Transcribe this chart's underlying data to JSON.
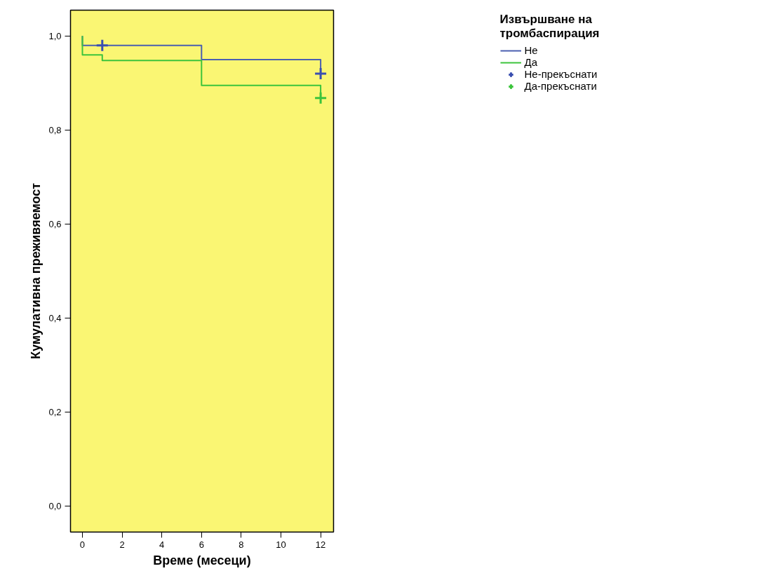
{
  "chart_data": {
    "type": "step",
    "xlabel": "Време (месеци)",
    "ylabel": "Кумулативна преживяемост",
    "legend_title": "Извършване на тромбаспирация",
    "series": [
      {
        "name": "Не",
        "color": "#4a5fb0",
        "x": [
          0,
          0,
          6,
          12
        ],
        "values": [
          1.0,
          0.98,
          0.95,
          0.92
        ]
      },
      {
        "name": "Да",
        "color": "#3cc43c",
        "x": [
          0,
          0,
          1,
          6,
          12
        ],
        "values": [
          1.0,
          0.96,
          0.948,
          0.895,
          0.868
        ]
      },
      {
        "name": "Не-прекъснати",
        "type": "scatter",
        "marker": "cross",
        "color": "#3a4fb0",
        "x": [
          1,
          12
        ],
        "values": [
          0.98,
          0.92
        ]
      },
      {
        "name": "Да-прекъснати",
        "type": "scatter",
        "marker": "cross",
        "color": "#3cc43c",
        "x": [
          12
        ],
        "values": [
          0.868
        ]
      }
    ],
    "xlim": [
      -0.6,
      12.65
    ],
    "ylim": [
      -0.055,
      1.055
    ],
    "xticks": [
      0,
      2,
      4,
      6,
      8,
      10,
      12
    ],
    "yticks": [
      {
        "value": 0,
        "label": "0,0"
      },
      {
        "value": 0.2,
        "label": "0,2"
      },
      {
        "value": 0.4,
        "label": "0,4"
      },
      {
        "value": 0.6,
        "label": "0,6"
      },
      {
        "value": 0.8,
        "label": "0,8"
      },
      {
        "value": 1.0,
        "label": "1,0"
      }
    ],
    "grid": false,
    "legend": "right"
  }
}
